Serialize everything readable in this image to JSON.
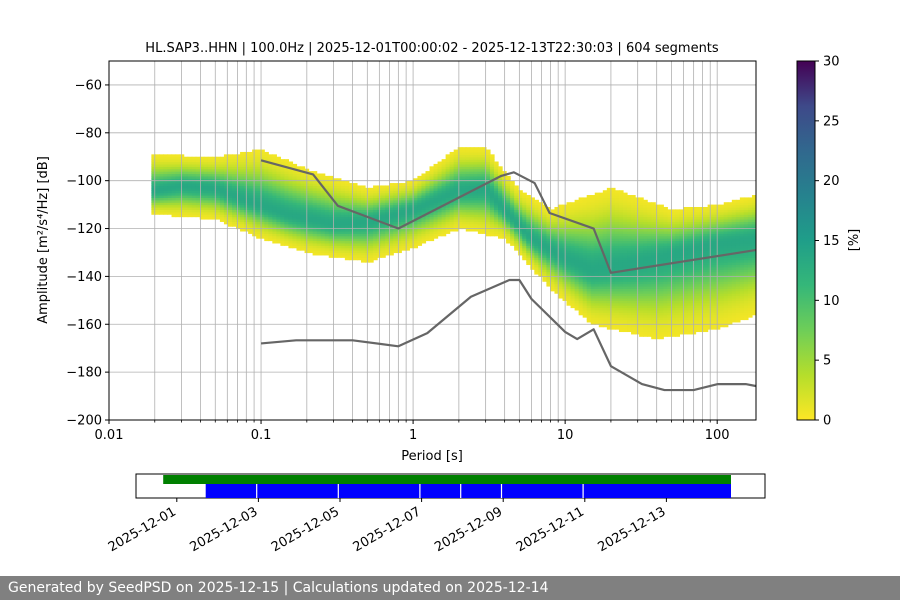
{
  "chart_data": [
    {
      "type": "heatmap",
      "title": "HL.SAP3..HHN | 100.0Hz | 2025-12-01T00:00:02 - 2025-12-13T22:30:03 | 604 segments",
      "xlabel": "Period [s]",
      "ylabel": "Amplitude [m²/s⁴/Hz] [dB]",
      "x_scale": "log",
      "xlim": [
        0.01,
        180
      ],
      "ylim": [
        -200,
        -50
      ],
      "x_ticks": [
        {
          "value": 0.01,
          "label": "0.01"
        },
        {
          "value": 0.1,
          "label": "0.1"
        },
        {
          "value": 1,
          "label": "1"
        },
        {
          "value": 10,
          "label": "10"
        },
        {
          "value": 100,
          "label": "100"
        }
      ],
      "y_ticks": [
        {
          "value": -60,
          "label": "−60"
        },
        {
          "value": -80,
          "label": "−80"
        },
        {
          "value": -100,
          "label": "−100"
        },
        {
          "value": -120,
          "label": "−120"
        },
        {
          "value": -140,
          "label": "−140"
        },
        {
          "value": -160,
          "label": "−160"
        },
        {
          "value": -180,
          "label": "−180"
        },
        {
          "value": -200,
          "label": "−200"
        }
      ],
      "grid": "vertical log gridlines and horizontal gridlines",
      "colormap": "viridis (reversed)",
      "colorbar": {
        "label": "[%]",
        "range": [
          0,
          30
        ],
        "ticks": [
          {
            "value": 0,
            "label": "0"
          },
          {
            "value": 5,
            "label": "5"
          },
          {
            "value": 10,
            "label": "10"
          },
          {
            "value": 15,
            "label": "15"
          },
          {
            "value": 20,
            "label": "20"
          },
          {
            "value": 25,
            "label": "25"
          },
          {
            "value": 30,
            "label": "30"
          }
        ]
      },
      "density_mode": [
        {
          "period": 0.02,
          "db": -104
        },
        {
          "period": 0.03,
          "db": -102
        },
        {
          "period": 0.05,
          "db": -103
        },
        {
          "period": 0.08,
          "db": -108
        },
        {
          "period": 0.15,
          "db": -114
        },
        {
          "period": 0.3,
          "db": -118
        },
        {
          "period": 0.5,
          "db": -117
        },
        {
          "period": 1,
          "db": -112
        },
        {
          "period": 2,
          "db": -104
        },
        {
          "period": 3,
          "db": -103
        },
        {
          "period": 4,
          "db": -112
        },
        {
          "period": 6,
          "db": -124
        },
        {
          "period": 10,
          "db": -132
        },
        {
          "period": 15,
          "db": -137
        },
        {
          "period": 30,
          "db": -134
        },
        {
          "period": 100,
          "db": -126
        },
        {
          "period": 180,
          "db": -124
        }
      ],
      "density_lower": [
        {
          "period": 0.02,
          "db": -114
        },
        {
          "period": 0.05,
          "db": -116
        },
        {
          "period": 0.1,
          "db": -124
        },
        {
          "period": 0.2,
          "db": -130
        },
        {
          "period": 0.5,
          "db": -134
        },
        {
          "period": 1,
          "db": -128
        },
        {
          "period": 2,
          "db": -120
        },
        {
          "period": 4,
          "db": -124
        },
        {
          "period": 8,
          "db": -145
        },
        {
          "period": 15,
          "db": -160
        },
        {
          "period": 40,
          "db": -166
        },
        {
          "period": 100,
          "db": -162
        },
        {
          "period": 180,
          "db": -156
        }
      ],
      "density_upper": [
        {
          "period": 0.02,
          "db": -89
        },
        {
          "period": 0.05,
          "db": -90
        },
        {
          "period": 0.1,
          "db": -87
        },
        {
          "period": 0.2,
          "db": -95
        },
        {
          "period": 0.5,
          "db": -103
        },
        {
          "period": 1,
          "db": -100
        },
        {
          "period": 2,
          "db": -86
        },
        {
          "period": 3,
          "db": -86
        },
        {
          "period": 5,
          "db": -104
        },
        {
          "period": 8,
          "db": -112
        },
        {
          "period": 20,
          "db": -103
        },
        {
          "period": 50,
          "db": -112
        },
        {
          "period": 100,
          "db": -110
        },
        {
          "period": 180,
          "db": -106
        }
      ],
      "series": [
        {
          "x": [
            0.1,
            0.22,
            0.32,
            0.8,
            3.8,
            4.6,
            6.3,
            7.9,
            15.4,
            20,
            179
          ],
          "y": [
            -91.5,
            -97.4,
            -110.5,
            -120.0,
            -98.0,
            -96.5,
            -101.0,
            -113.5,
            -120.0,
            -138.5,
            -129.0
          ]
        },
        {
          "x": [
            0.1,
            0.17,
            0.4,
            0.8,
            1.24,
            2.4,
            4.3,
            5.0,
            6.0,
            10,
            12,
            15.4,
            20,
            32,
            45,
            70,
            101,
            154,
            179
          ],
          "y": [
            -168.0,
            -166.7,
            -166.7,
            -169.2,
            -163.7,
            -148.5,
            -141.5,
            -141.5,
            -149.4,
            -163.2,
            -166.2,
            -162.1,
            -177.5,
            -185.0,
            -187.5,
            -187.5,
            -185.0,
            -185.0,
            -185.8
          ]
        }
      ]
    },
    {
      "type": "bar",
      "x_ticks": [
        {
          "value": "2025-12-01",
          "label": "2025-12-01"
        },
        {
          "value": "2025-12-03",
          "label": "2025-12-03"
        },
        {
          "value": "2025-12-05",
          "label": "2025-12-05"
        },
        {
          "value": "2025-12-07",
          "label": "2025-12-07"
        },
        {
          "value": "2025-12-09",
          "label": "2025-12-09"
        },
        {
          "value": "2025-12-11",
          "label": "2025-12-11"
        },
        {
          "value": "2025-12-13",
          "label": "2025-12-13"
        }
      ],
      "xlim": [
        "2025-11-30T00:00",
        "2025-12-15T10:00"
      ],
      "series": [
        {
          "color": "#008000",
          "intervals": [
            [
              "2025-11-30T16:00",
              "2025-12-14T14:00"
            ]
          ]
        },
        {
          "color": "#0000ff",
          "intervals": [
            [
              "2025-12-01T17:00",
              "2025-12-14T14:00"
            ]
          ]
        }
      ],
      "gaps": [
        "2025-12-02T23:00",
        "2025-12-04T23:00",
        "2025-12-06T23:00",
        "2025-12-07T23:00",
        "2025-12-08T23:00",
        "2025-12-10T23:00"
      ]
    }
  ],
  "footer": {
    "text": "Generated by SeedPSD on 2025-12-15 | Calculations updated on 2025-12-14"
  }
}
